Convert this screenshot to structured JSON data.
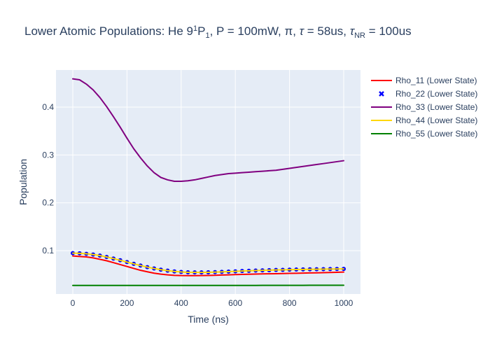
{
  "chart_data": {
    "type": "line",
    "title": {
      "main": "Lower Atomic Populations: He 9",
      "sup": "1",
      "p": "P",
      "sub": "1",
      "rest1": ", P = 100mW, π, ",
      "tau": "τ",
      "rest2": " = 58us, ",
      "tau2": "τ",
      "nr": "NR",
      "rest3": " = 100us"
    },
    "xlabel": "Time (ns)",
    "ylabel": "Population",
    "xlim": [
      -62,
      1062
    ],
    "ylim": [
      0.0095,
      0.4775
    ],
    "xticks": [
      0,
      200,
      400,
      600,
      800,
      1000
    ],
    "xtick_labels": [
      "0",
      "200",
      "400",
      "600",
      "800",
      "1000"
    ],
    "yticks": [
      0.1,
      0.2,
      0.3,
      0.4
    ],
    "ytick_labels": [
      "0.1",
      "0.2",
      "0.3",
      "0.4"
    ],
    "grid": true,
    "legend_position": "right",
    "plot_background": "#e5ecf6",
    "x": [
      0,
      25,
      50,
      75,
      100,
      125,
      150,
      175,
      200,
      225,
      250,
      275,
      300,
      325,
      350,
      375,
      400,
      425,
      450,
      475,
      500,
      525,
      550,
      575,
      600,
      625,
      650,
      675,
      700,
      725,
      750,
      775,
      800,
      825,
      850,
      875,
      900,
      925,
      950,
      975,
      1000
    ],
    "series": [
      {
        "name": "Rho_11 (Lower State)",
        "color": "#ff0000",
        "mode": "line",
        "values": [
          0.089,
          0.088,
          0.087,
          0.085,
          0.082,
          0.079,
          0.075,
          0.071,
          0.067,
          0.063,
          0.059,
          0.056,
          0.053,
          0.051,
          0.0495,
          0.0485,
          0.048,
          0.0478,
          0.0478,
          0.048,
          0.0483,
          0.0487,
          0.0491,
          0.0496,
          0.0501,
          0.0505,
          0.0509,
          0.0512,
          0.0515,
          0.0518,
          0.052,
          0.0523,
          0.0526,
          0.0529,
          0.0532,
          0.0535,
          0.0538,
          0.0541,
          0.0545,
          0.0549,
          0.0553
        ]
      },
      {
        "name": "Rho_22 (Lower State)",
        "color": "#0000ff",
        "mode": "markers",
        "values": [
          0.0948,
          0.0945,
          0.0935,
          0.092,
          0.0898,
          0.0868,
          0.0835,
          0.08,
          0.0762,
          0.0725,
          0.069,
          0.0657,
          0.0628,
          0.0603,
          0.0583,
          0.0567,
          0.0556,
          0.0549,
          0.0546,
          0.0546,
          0.0548,
          0.0552,
          0.0557,
          0.0563,
          0.0569,
          0.0575,
          0.058,
          0.0585,
          0.0589,
          0.0593,
          0.0597,
          0.06,
          0.0603,
          0.0606,
          0.0608,
          0.061,
          0.0612,
          0.0614,
          0.0616,
          0.0618,
          0.062
        ]
      },
      {
        "name": "Rho_33 (Lower State)",
        "color": "#800080",
        "mode": "line",
        "values": [
          0.459,
          0.457,
          0.448,
          0.436,
          0.42,
          0.401,
          0.38,
          0.358,
          0.335,
          0.313,
          0.294,
          0.277,
          0.263,
          0.253,
          0.248,
          0.245,
          0.245,
          0.246,
          0.248,
          0.251,
          0.254,
          0.257,
          0.259,
          0.261,
          0.262,
          0.263,
          0.264,
          0.265,
          0.266,
          0.267,
          0.268,
          0.27,
          0.272,
          0.274,
          0.276,
          0.278,
          0.28,
          0.282,
          0.284,
          0.286,
          0.288
        ]
      },
      {
        "name": "Rho_44 (Lower State)",
        "color": "#ffd700",
        "mode": "line",
        "values": [
          0.0948,
          0.0945,
          0.0935,
          0.092,
          0.0898,
          0.0868,
          0.0835,
          0.08,
          0.0762,
          0.0725,
          0.069,
          0.0657,
          0.0628,
          0.0603,
          0.0583,
          0.0567,
          0.0556,
          0.0549,
          0.0546,
          0.0546,
          0.0548,
          0.0552,
          0.0557,
          0.0563,
          0.0569,
          0.0575,
          0.058,
          0.0585,
          0.0589,
          0.0593,
          0.0597,
          0.06,
          0.0603,
          0.0606,
          0.0608,
          0.061,
          0.0612,
          0.0614,
          0.0616,
          0.0618,
          0.062
        ]
      },
      {
        "name": "Rho_55 (Lower State)",
        "color": "#008000",
        "mode": "line",
        "values": [
          0.0275,
          0.0275,
          0.0275,
          0.0275,
          0.0275,
          0.0275,
          0.0275,
          0.0275,
          0.0275,
          0.0275,
          0.0275,
          0.0275,
          0.0275,
          0.0275,
          0.0275,
          0.0275,
          0.0275,
          0.0275,
          0.0275,
          0.0275,
          0.0275,
          0.0275,
          0.0275,
          0.0275,
          0.0275,
          0.0275,
          0.0275,
          0.0275,
          0.0276,
          0.0276,
          0.0276,
          0.0276,
          0.0276,
          0.0276,
          0.0276,
          0.0277,
          0.0277,
          0.0277,
          0.0277,
          0.0277,
          0.0277
        ]
      }
    ]
  }
}
